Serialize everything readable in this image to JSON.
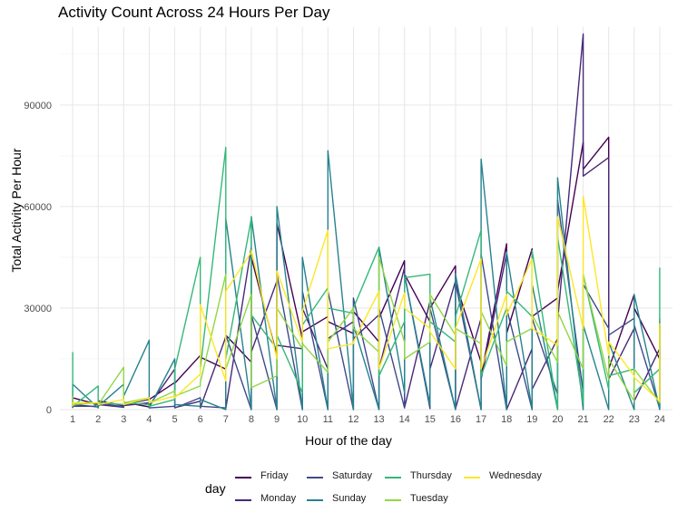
{
  "chart_data": {
    "type": "line",
    "title": "Activity Count Across 24 Hours Per Day",
    "xlabel": "Hour of the day",
    "ylabel": "Total Activity Per Hour",
    "xlim": [
      0.5,
      24.5
    ],
    "ylim": [
      0,
      113000
    ],
    "x_ticks": [
      1,
      2,
      3,
      4,
      5,
      6,
      7,
      8,
      9,
      10,
      11,
      12,
      13,
      14,
      15,
      16,
      17,
      18,
      19,
      20,
      21,
      22,
      23,
      24
    ],
    "y_ticks": [
      0,
      30000,
      60000,
      90000
    ],
    "y_tick_labels": [
      "0",
      "30000",
      "60000",
      "90000"
    ],
    "grid": true,
    "legend": {
      "title": "day",
      "position": "bottom"
    },
    "series": [
      {
        "name": "Friday",
        "color": "#440154",
        "x": [
          1,
          1,
          2,
          2,
          3,
          3,
          4,
          4,
          5,
          5,
          6,
          6,
          7,
          7,
          8,
          8,
          9,
          9,
          10,
          10,
          11,
          11,
          12,
          12,
          13,
          13,
          14,
          14,
          15,
          15,
          16,
          16,
          17,
          17,
          18,
          18,
          19,
          19,
          20,
          20,
          21,
          21,
          22,
          22,
          23,
          23,
          24,
          24
        ],
        "y": [
          800,
          3500,
          1500,
          2600,
          1200,
          2200,
          800,
          3000,
          8000,
          7800,
          16000,
          15500,
          12000,
          22000,
          14000,
          45000,
          16000,
          55000,
          21000,
          23000,
          27500,
          26000,
          22500,
          29000,
          20000,
          27000,
          44000,
          40000,
          26000,
          30000,
          42500,
          37500,
          14000,
          10000,
          49000,
          22500,
          47500,
          27500,
          33000,
          35000,
          79000,
          71000,
          80500,
          12000,
          34000,
          30000,
          15000,
          25000
        ]
      },
      {
        "name": "Monday",
        "color": "#482878",
        "x": [
          1,
          1,
          2,
          2,
          3,
          3,
          4,
          4,
          5,
          5,
          6,
          6,
          7,
          7,
          8,
          8,
          9,
          9,
          10,
          10,
          11,
          11,
          12,
          12,
          13,
          13,
          14,
          14,
          15,
          15,
          16,
          16,
          17,
          17,
          18,
          18,
          19,
          19,
          20,
          20,
          21,
          21,
          22,
          22,
          23,
          23,
          24,
          24
        ],
        "y": [
          500,
          1500,
          800,
          1500,
          700,
          1200,
          2000,
          1200,
          12000,
          600,
          2500,
          500,
          21500,
          300,
          48000,
          17000,
          38000,
          19000,
          18000,
          30000,
          12000,
          21000,
          26000,
          21000,
          28000,
          12000,
          42000,
          600,
          32000,
          12000,
          38000,
          300,
          27000,
          9000,
          46000,
          0,
          18000,
          6000,
          21000,
          26000,
          111000,
          69000,
          74500,
          9000,
          24000,
          2500,
          18000,
          3000
        ]
      },
      {
        "name": "Saturday",
        "color": "#3E4A89",
        "x": [
          1,
          1,
          2,
          2,
          3,
          3,
          4,
          4,
          5,
          5,
          6,
          6,
          7,
          7,
          8,
          8,
          9,
          9,
          10,
          10,
          11,
          11,
          12,
          12,
          13,
          13,
          14,
          14,
          15,
          15,
          16,
          16,
          17,
          17,
          18,
          18,
          19,
          19,
          20,
          20,
          21,
          21,
          22,
          22,
          23,
          23,
          24,
          24
        ],
        "y": [
          2000,
          1000,
          1000,
          2000,
          800,
          1500,
          3000,
          500,
          1000,
          500,
          3500,
          1000,
          500,
          22000,
          0,
          28000,
          0,
          40000,
          0,
          35000,
          0,
          35000,
          0,
          33000,
          0,
          30000,
          500,
          40000,
          300,
          30000,
          0,
          37500,
          0,
          46000,
          0,
          30000,
          0,
          27000,
          4500,
          62000,
          5000,
          37000,
          24000,
          22000,
          27000,
          25000,
          300,
          26000
        ]
      },
      {
        "name": "Sunday",
        "color": "#26828E",
        "x": [
          1,
          1,
          2,
          2,
          3,
          3,
          4,
          4,
          5,
          5,
          6,
          6,
          7,
          7,
          8,
          8,
          9,
          9,
          10,
          10,
          11,
          11,
          12,
          12,
          13,
          13,
          14,
          14,
          15,
          15,
          16,
          16,
          17,
          17,
          18,
          18,
          19,
          19,
          20,
          20,
          21,
          21,
          22,
          22,
          23,
          23,
          24,
          24
        ],
        "y": [
          2000,
          7500,
          500,
          1000,
          7500,
          4000,
          20500,
          500,
          15000,
          1500,
          1000,
          3000,
          0,
          56500,
          0,
          57000,
          0,
          60000,
          0,
          45000,
          0,
          76500,
          0,
          25000,
          0,
          48000,
          5000,
          40000,
          1500,
          33000,
          0,
          40000,
          0,
          74000,
          0,
          46500,
          0,
          37000,
          0,
          68500,
          0,
          25000,
          0,
          20000,
          0,
          34000,
          0,
          27000
        ]
      },
      {
        "name": "Thursday",
        "color": "#35B779",
        "x": [
          1,
          1,
          2,
          2,
          3,
          3,
          4,
          4,
          5,
          5,
          6,
          6,
          7,
          7,
          8,
          8,
          9,
          9,
          10,
          10,
          11,
          11,
          12,
          12,
          13,
          13,
          14,
          14,
          15,
          15,
          16,
          16,
          17,
          17,
          18,
          18,
          19,
          19,
          20,
          20,
          21,
          21,
          22,
          22,
          23,
          23,
          24,
          24
        ],
        "y": [
          17000,
          1000,
          7000,
          2000,
          1500,
          2000,
          1500,
          1000,
          3000,
          12000,
          45000,
          12000,
          77500,
          15000,
          56500,
          28000,
          18000,
          22000,
          5000,
          25000,
          36000,
          30000,
          28500,
          30000,
          48000,
          10000,
          26000,
          39000,
          40000,
          26000,
          20000,
          27500,
          53000,
          10000,
          30000,
          35000,
          27500,
          47000,
          0,
          51000,
          2000,
          40000,
          6000,
          10000,
          12000,
          5000,
          12000,
          42000
        ]
      },
      {
        "name": "Tuesday",
        "color": "#8FD744",
        "x": [
          1,
          1,
          2,
          2,
          3,
          3,
          4,
          4,
          5,
          5,
          6,
          6,
          7,
          7,
          8,
          8,
          9,
          9,
          10,
          10,
          11,
          11,
          12,
          12,
          13,
          13,
          14,
          14,
          15,
          15,
          16,
          16,
          17,
          17,
          18,
          18,
          19,
          19,
          20,
          20,
          21,
          21,
          22,
          22,
          23,
          23,
          24,
          24
        ],
        "y": [
          4000,
          1500,
          2000,
          1500,
          12500,
          2000,
          3500,
          2000,
          5500,
          4000,
          7000,
          8000,
          40000,
          12000,
          34000,
          6500,
          10000,
          30000,
          18000,
          19500,
          11000,
          20000,
          30000,
          24000,
          17000,
          45000,
          20000,
          15000,
          20000,
          34000,
          22000,
          24000,
          19500,
          29000,
          13000,
          20000,
          24000,
          28000,
          14000,
          29000,
          12000,
          40000,
          9000,
          15000,
          2500,
          12000,
          2000,
          24000
        ]
      },
      {
        "name": "Wednesday",
        "color": "#FDE725",
        "x": [
          1,
          1,
          2,
          2,
          3,
          3,
          4,
          4,
          5,
          5,
          6,
          6,
          7,
          7,
          8,
          8,
          9,
          9,
          10,
          10,
          11,
          11,
          12,
          12,
          13,
          13,
          14,
          14,
          15,
          15,
          16,
          16,
          17,
          17,
          18,
          18,
          19,
          19,
          20,
          20,
          21,
          21,
          22,
          22,
          23,
          23,
          24,
          24
        ],
        "y": [
          1000,
          2000,
          2000,
          1500,
          3000,
          1500,
          3500,
          2000,
          4000,
          3500,
          10500,
          31000,
          8500,
          35000,
          46500,
          47000,
          15000,
          41000,
          20000,
          29000,
          53000,
          18000,
          19500,
          20000,
          35000,
          12000,
          34500,
          30000,
          24000,
          23000,
          12000,
          24000,
          44500,
          12000,
          34000,
          28000,
          44500,
          24000,
          19000,
          57000,
          24000,
          63000,
          16000,
          20000,
          10000,
          9500,
          2500,
          25500
        ]
      }
    ]
  }
}
